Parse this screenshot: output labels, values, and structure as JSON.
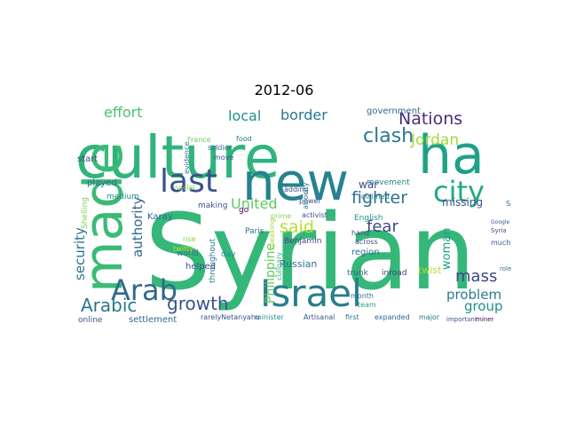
{
  "title": "2012-06",
  "words": [
    {
      "text": "Syrian",
      "color": "#35b779"
    },
    {
      "text": "culture",
      "color": "#2fb47c"
    },
    {
      "text": "made",
      "color": "#3aba76"
    },
    {
      "text": "new",
      "color": "#26828e"
    },
    {
      "text": "ha",
      "color": "#1fa188"
    },
    {
      "text": "Israel",
      "color": "#287d8e"
    },
    {
      "text": "last",
      "color": "#3b528b"
    },
    {
      "text": "city",
      "color": "#22a884"
    },
    {
      "text": "Arab",
      "color": "#31688e"
    },
    {
      "text": "clash",
      "color": "#2a788e"
    },
    {
      "text": "Nations",
      "color": "#472d7b"
    },
    {
      "text": "fighter",
      "color": "#2c728e"
    },
    {
      "text": "Arabic",
      "color": "#2a788e"
    },
    {
      "text": "growth",
      "color": "#3b528b"
    },
    {
      "text": "United",
      "color": "#5ec962"
    },
    {
      "text": "said",
      "color": "#b5de2b"
    },
    {
      "text": "Jordan",
      "color": "#a0da39"
    },
    {
      "text": "effort",
      "color": "#4ac16d"
    },
    {
      "text": "local",
      "color": "#21918c"
    },
    {
      "text": "border",
      "color": "#2a788e"
    },
    {
      "text": "mass",
      "color": "#414487"
    },
    {
      "text": "problem",
      "color": "#2a788e"
    },
    {
      "text": "security",
      "color": "#2c728e"
    },
    {
      "text": "authority",
      "color": "#31688e"
    },
    {
      "text": "fear",
      "color": "#3e4989"
    },
    {
      "text": "woman",
      "color": "#1fa188"
    },
    {
      "text": "group",
      "color": "#21918c"
    },
    {
      "text": "missing",
      "color": "#3b528b"
    },
    {
      "text": "Philippine",
      "color": "#63cb5f"
    },
    {
      "text": "Russian",
      "color": "#2c728e"
    },
    {
      "text": "Benjamin",
      "color": "#414487"
    },
    {
      "text": "government",
      "color": "#31688e"
    },
    {
      "text": "war",
      "color": "#3e4989"
    },
    {
      "text": "movement",
      "color": "#26828e"
    },
    {
      "text": "region",
      "color": "#2c728e"
    },
    {
      "text": "English",
      "color": "#1f988b"
    },
    {
      "text": "trunk",
      "color": "#31688e"
    },
    {
      "text": "inroad",
      "color": "#414487"
    },
    {
      "text": "twist",
      "color": "#b5de2b"
    },
    {
      "text": "settlement",
      "color": "#31688e"
    },
    {
      "text": "online",
      "color": "#3b528b"
    },
    {
      "text": "start",
      "color": "#3e4989"
    },
    {
      "text": "played",
      "color": "#31688e"
    },
    {
      "text": "medium",
      "color": "#21918c"
    },
    {
      "text": "Karay",
      "color": "#31688e"
    },
    {
      "text": "making",
      "color": "#3b528b"
    },
    {
      "text": "go",
      "color": "#440154"
    },
    {
      "text": "Paris",
      "color": "#2c728e"
    },
    {
      "text": "throughout",
      "color": "#2a788e"
    },
    {
      "text": "day",
      "color": "#21918c"
    },
    {
      "text": "helped",
      "color": "#3b528b"
    },
    {
      "text": "world",
      "color": "#2a788e"
    },
    {
      "text": "minister",
      "color": "#21918c"
    },
    {
      "text": "rarelyNetanyahu",
      "color": "#3b528b"
    },
    {
      "text": "Artisanal",
      "color": "#3b528b"
    },
    {
      "text": "first",
      "color": "#2c728e"
    },
    {
      "text": "expanded",
      "color": "#31688e"
    },
    {
      "text": "major",
      "color": "#2c728e"
    },
    {
      "text": "important",
      "color": "#3b528b"
    },
    {
      "text": "miner",
      "color": "#440154"
    },
    {
      "text": "month",
      "color": "#2c728e"
    },
    {
      "text": "team",
      "color": "#1fa188"
    },
    {
      "text": "hand",
      "color": "#3b528b"
    },
    {
      "text": "across",
      "color": "#3e4989"
    },
    {
      "text": "power",
      "color": "#3b528b"
    },
    {
      "text": "claimed",
      "color": "#2a788e"
    },
    {
      "text": "adding",
      "color": "#3b528b"
    },
    {
      "text": "atrocity",
      "color": "#2c728e"
    },
    {
      "text": "activist",
      "color": "#3b528b"
    },
    {
      "text": "France",
      "color": "#6ece58"
    },
    {
      "text": "food",
      "color": "#2c728e"
    },
    {
      "text": "soldier",
      "color": "#31688e"
    },
    {
      "text": "evidence",
      "color": "#2c728e"
    },
    {
      "text": "move",
      "color": "#3b528b"
    },
    {
      "text": "social",
      "color": "#7ad151"
    },
    {
      "text": "Spring",
      "color": "#31688e"
    },
    {
      "text": "much",
      "color": "#3b528b"
    },
    {
      "text": "Shelling",
      "color": "#7ad151"
    },
    {
      "text": "twitty",
      "color": "#bddf26"
    },
    {
      "text": "rise",
      "color": "#84d44b"
    },
    {
      "text": "role",
      "color": "#2c728e"
    },
    {
      "text": "culinary",
      "color": "#35b779"
    },
    {
      "text": "speaking",
      "color": "#a0da39"
    },
    {
      "text": "prime",
      "color": "#84d44b"
    },
    {
      "text": "Syria",
      "color": "#3e4989"
    },
    {
      "text": "Google",
      "color": "#3b528b"
    }
  ]
}
